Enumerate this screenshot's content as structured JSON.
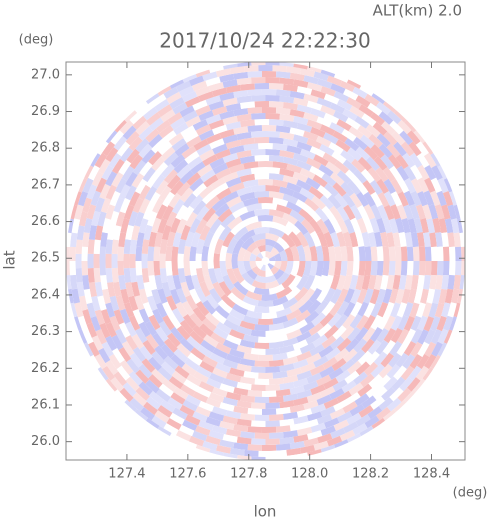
{
  "chart_data": {
    "type": "radar-ppi",
    "title": "2017/10/24 22:22:30",
    "subtitle": "ALT(km) 2.0",
    "x_label": "lon",
    "x_unit": "(deg)",
    "y_label": "lat",
    "y_unit": "(deg)",
    "xlim": [
      127.2,
      128.51
    ],
    "ylim": [
      25.95,
      27.035
    ],
    "xticks": [
      127.4,
      127.6,
      127.8,
      {
        "value": 128.0,
        "label": "128.0"
      },
      128.2,
      128.4
    ],
    "yticks": [
      {
        "value": 26.0,
        "label": "26.0"
      },
      26.1,
      26.2,
      26.3,
      26.4,
      26.5,
      26.6,
      26.7,
      26.8,
      26.9,
      {
        "value": 27.0,
        "label": "27.0"
      }
    ]
  }
}
